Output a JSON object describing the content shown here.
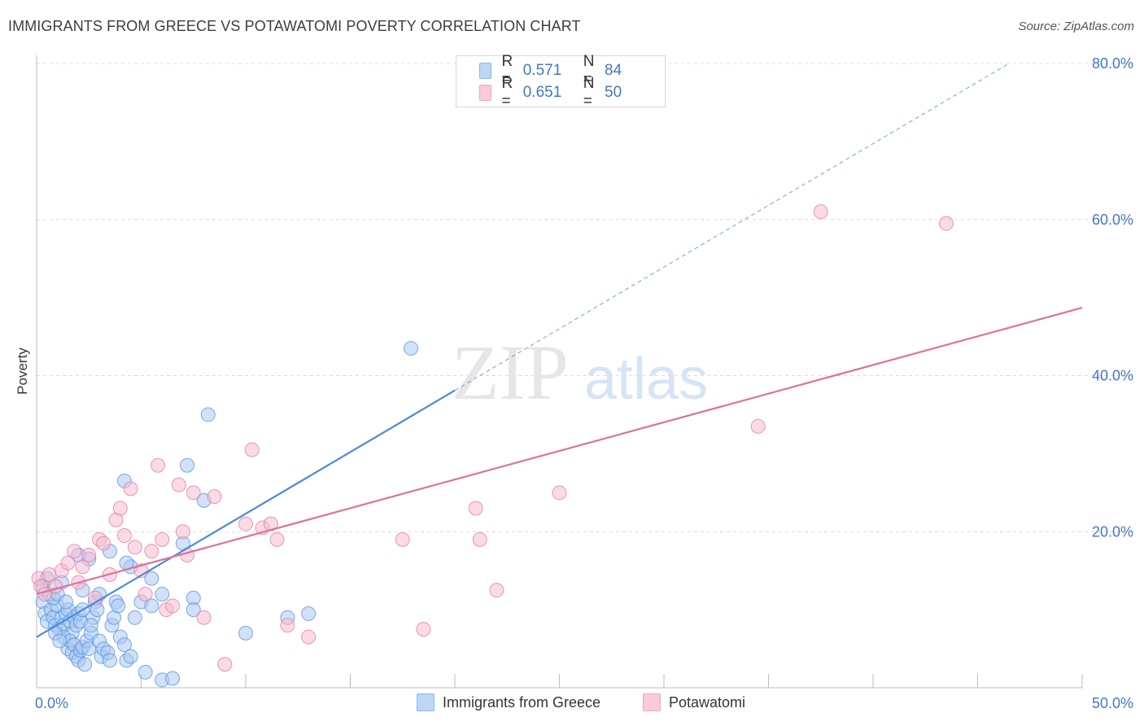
{
  "title": "IMMIGRANTS FROM GREECE VS POTAWATOMI POVERTY CORRELATION CHART",
  "source": "Source: ZipAtlas.com",
  "watermark": {
    "zip": "ZIP",
    "atlas": "atlas"
  },
  "legend": [
    {
      "r_label": "R =",
      "r_value": "0.571",
      "n_label": "N =",
      "n_value": "84",
      "color": "#8fb8ef"
    },
    {
      "r_label": "R =",
      "r_value": "0.651",
      "n_label": "N =",
      "n_value": "50",
      "color": "#f4a6c0"
    }
  ],
  "bottom_legend": [
    "Immigrants from Greece",
    "Potawatomi"
  ],
  "chart_data": {
    "type": "scatter",
    "ylabel": "Poverty",
    "xlim": [
      0,
      50
    ],
    "ylim": [
      0,
      80
    ],
    "x_tick_labels": [
      "0.0%",
      "50.0%"
    ],
    "y_ticks": [
      20,
      40,
      60,
      80
    ],
    "y_tick_labels": [
      "20.0%",
      "40.0%",
      "60.0%",
      "80.0%"
    ],
    "grid": true,
    "series": [
      {
        "name": "Immigrants from Greece",
        "color": "#4a8ad9",
        "fill": "#a9c9f2",
        "trend": {
          "x": [
            0,
            20
          ],
          "y": [
            6.5,
            38.1
          ]
        },
        "trend_extension": {
          "x": [
            20,
            46.5
          ],
          "y": [
            38.1,
            80
          ]
        },
        "points": [
          [
            0.3,
            11
          ],
          [
            0.4,
            9.5
          ],
          [
            0.5,
            8.5
          ],
          [
            0.6,
            12
          ],
          [
            0.7,
            10
          ],
          [
            0.8,
            9
          ],
          [
            0.9,
            8
          ],
          [
            1.0,
            10.5
          ],
          [
            1.1,
            7.5
          ],
          [
            1.2,
            9
          ],
          [
            1.3,
            8
          ],
          [
            1.4,
            9.5
          ],
          [
            1.5,
            10
          ],
          [
            1.6,
            8.5
          ],
          [
            1.7,
            7
          ],
          [
            1.8,
            9
          ],
          [
            1.9,
            8
          ],
          [
            2.0,
            9.5
          ],
          [
            2.1,
            8.5
          ],
          [
            2.2,
            10
          ],
          [
            0.3,
            13
          ],
          [
            0.5,
            14
          ],
          [
            0.8,
            11.5
          ],
          [
            1.0,
            12
          ],
          [
            1.2,
            13.5
          ],
          [
            1.3,
            6.5
          ],
          [
            1.5,
            5
          ],
          [
            1.6,
            6
          ],
          [
            1.7,
            4.5
          ],
          [
            1.8,
            5.5
          ],
          [
            1.9,
            4
          ],
          [
            2.0,
            3.5
          ],
          [
            2.1,
            4.8
          ],
          [
            2.2,
            5.2
          ],
          [
            2.3,
            3
          ],
          [
            2.4,
            6
          ],
          [
            2.5,
            5
          ],
          [
            2.6,
            7
          ],
          [
            2.7,
            9
          ],
          [
            2.8,
            11
          ],
          [
            2.9,
            10
          ],
          [
            3.0,
            6
          ],
          [
            3.1,
            4
          ],
          [
            3.2,
            5
          ],
          [
            3.4,
            4.5
          ],
          [
            3.5,
            3.5
          ],
          [
            3.6,
            8
          ],
          [
            3.7,
            9
          ],
          [
            3.8,
            11
          ],
          [
            3.9,
            10.5
          ],
          [
            4.0,
            6.5
          ],
          [
            4.2,
            5.5
          ],
          [
            4.3,
            3.5
          ],
          [
            4.5,
            4
          ],
          [
            4.7,
            9
          ],
          [
            5.0,
            11
          ],
          [
            5.2,
            2
          ],
          [
            5.5,
            10.5
          ],
          [
            6.0,
            1
          ],
          [
            6.5,
            1.2
          ],
          [
            7.0,
            18.5
          ],
          [
            7.2,
            28.5
          ],
          [
            7.5,
            11.5
          ],
          [
            8.0,
            24
          ],
          [
            8.2,
            35
          ],
          [
            10.0,
            7
          ],
          [
            12.0,
            9
          ],
          [
            13.0,
            9.5
          ],
          [
            17.9,
            43.5
          ],
          [
            4.2,
            26.5
          ],
          [
            4.5,
            15.5
          ],
          [
            4.3,
            16
          ],
          [
            2.5,
            16.5
          ],
          [
            2.0,
            17
          ],
          [
            3.5,
            17.5
          ],
          [
            5.5,
            14
          ],
          [
            2.2,
            12.5
          ],
          [
            1.4,
            11
          ],
          [
            0.9,
            7
          ],
          [
            1.1,
            6
          ],
          [
            3.0,
            12
          ],
          [
            6.0,
            12
          ],
          [
            7.5,
            10
          ],
          [
            2.6,
            8
          ]
        ]
      },
      {
        "name": "Potawatomi",
        "color": "#e07099",
        "fill": "#f6bcd0",
        "trend": {
          "x": [
            0,
            50
          ],
          "y": [
            12,
            48.7
          ]
        },
        "points": [
          [
            0.1,
            14
          ],
          [
            0.2,
            13
          ],
          [
            0.4,
            12
          ],
          [
            0.6,
            14.5
          ],
          [
            0.9,
            13
          ],
          [
            1.2,
            15
          ],
          [
            1.5,
            16
          ],
          [
            1.8,
            17.5
          ],
          [
            2.0,
            13.5
          ],
          [
            2.2,
            15.5
          ],
          [
            2.5,
            17
          ],
          [
            2.8,
            11.5
          ],
          [
            3.0,
            19
          ],
          [
            3.2,
            18.5
          ],
          [
            3.5,
            14.5
          ],
          [
            3.8,
            21.5
          ],
          [
            4.0,
            23
          ],
          [
            4.2,
            19.5
          ],
          [
            4.5,
            25.5
          ],
          [
            4.7,
            18
          ],
          [
            5.0,
            15
          ],
          [
            5.2,
            12
          ],
          [
            5.5,
            17.5
          ],
          [
            5.8,
            28.5
          ],
          [
            6.0,
            19
          ],
          [
            6.2,
            10
          ],
          [
            6.5,
            10.5
          ],
          [
            6.8,
            26
          ],
          [
            7.0,
            20
          ],
          [
            7.2,
            17
          ],
          [
            7.5,
            25
          ],
          [
            8.0,
            9
          ],
          [
            8.5,
            24.5
          ],
          [
            9.0,
            3
          ],
          [
            10.0,
            21
          ],
          [
            10.3,
            30.5
          ],
          [
            10.8,
            20.5
          ],
          [
            11.2,
            21
          ],
          [
            11.5,
            19
          ],
          [
            12.0,
            8
          ],
          [
            13.0,
            6.5
          ],
          [
            17.5,
            19
          ],
          [
            18.5,
            7.5
          ],
          [
            21.0,
            23
          ],
          [
            21.2,
            19
          ],
          [
            22.0,
            12.5
          ],
          [
            25.0,
            25
          ],
          [
            34.5,
            33.5
          ],
          [
            37.5,
            61
          ],
          [
            43.5,
            59.5
          ]
        ]
      }
    ]
  }
}
